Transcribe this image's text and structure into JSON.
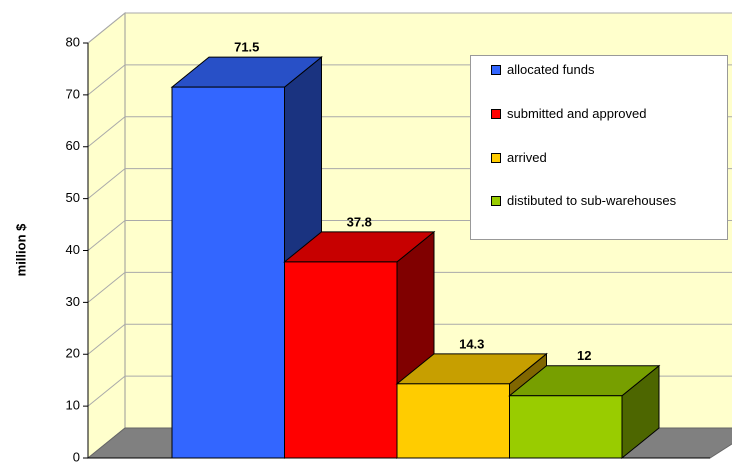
{
  "chart_data": {
    "type": "bar3d",
    "y_label": "million $",
    "series": [
      {
        "name": "allocated funds",
        "color": "#3366ff",
        "values": [
          71.5
        ]
      },
      {
        "name": "submitted and approved",
        "color": "#ff0000",
        "values": [
          37.8
        ]
      },
      {
        "name": "arrived",
        "color": "#ffcc00",
        "values": [
          14.3
        ]
      },
      {
        "name": "distibuted to sub-warehouses",
        "color": "#99cc00",
        "values": [
          12
        ]
      }
    ],
    "ylim": [
      0,
      80
    ],
    "yticks": [
      0,
      10,
      20,
      30,
      40,
      50,
      60,
      70,
      80
    ],
    "grid": true,
    "legend": "top-right"
  }
}
